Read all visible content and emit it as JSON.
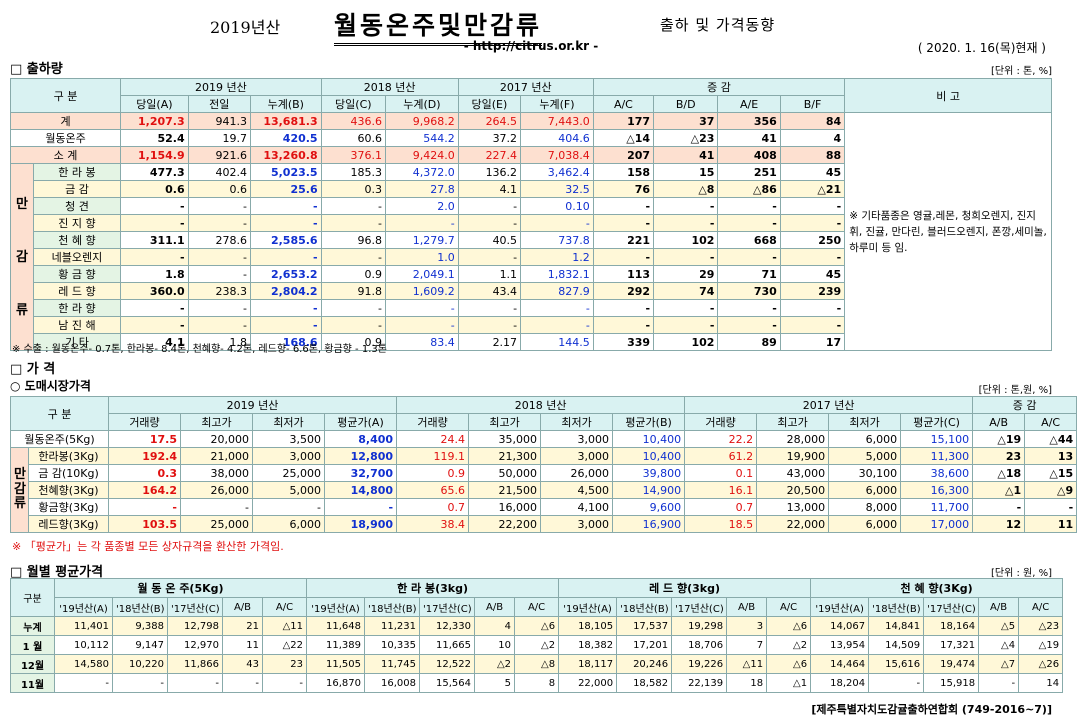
{
  "header": {
    "year_label": "2019년산",
    "main_title": "월동온주및만감류",
    "subtitle": "출하 및 가격동향",
    "url": "- http://citrus.or.kr -",
    "date": "( 2020. 1. 16(목)현재 )"
  },
  "shipment": {
    "section_title": "□ 출하량",
    "unit": "[단위 : 톤, %]",
    "h_gubun": "구    분",
    "h_2019": "2019 년산",
    "h_2018": "2018 년산",
    "h_2017": "2017 년산",
    "h_change": "증    감",
    "h_remark": "비 고",
    "sub_headers": [
      "당일(A)",
      "전일",
      "누계(B)",
      "당일(C)",
      "누계(D)",
      "당일(E)",
      "누계(F)",
      "A/C",
      "B/D",
      "A/E",
      "B/F"
    ],
    "side_label_1": "만",
    "side_label_2": "감",
    "side_label_3": "류",
    "rows": [
      {
        "name": "계",
        "v": [
          "1,207.3",
          "941.3",
          "13,681.3",
          "436.6",
          "9,968.2",
          "264.5",
          "7,443.0",
          "177",
          "37",
          "356",
          "84"
        ]
      },
      {
        "name": "월동온주",
        "v": [
          "52.4",
          "19.7",
          "420.5",
          "60.6",
          "544.2",
          "37.2",
          "404.6",
          "△14",
          "△23",
          "41",
          "4"
        ]
      },
      {
        "name": "소    계",
        "v": [
          "1,154.9",
          "921.6",
          "13,260.8",
          "376.1",
          "9,424.0",
          "227.4",
          "7,038.4",
          "207",
          "41",
          "408",
          "88"
        ]
      },
      {
        "name": "한 라 봉",
        "v": [
          "477.3",
          "402.4",
          "5,023.5",
          "185.3",
          "4,372.0",
          "136.2",
          "3,462.4",
          "158",
          "15",
          "251",
          "45"
        ]
      },
      {
        "name": "금    감",
        "v": [
          "0.6",
          "0.6",
          "25.6",
          "0.3",
          "27.8",
          "4.1",
          "32.5",
          "76",
          "△8",
          "△86",
          "△21"
        ]
      },
      {
        "name": "청    견",
        "v": [
          "-",
          "-",
          "-",
          "-",
          "2.0",
          "-",
          "0.10",
          "-",
          "-",
          "-",
          "-"
        ]
      },
      {
        "name": "진 지 향",
        "v": [
          "-",
          "-",
          "-",
          "-",
          "-",
          "-",
          "-",
          "-",
          "-",
          "-",
          "-"
        ]
      },
      {
        "name": "천 혜 향",
        "v": [
          "311.1",
          "278.6",
          "2,585.6",
          "96.8",
          "1,279.7",
          "40.5",
          "737.8",
          "221",
          "102",
          "668",
          "250"
        ]
      },
      {
        "name": "네블오렌지",
        "v": [
          "-",
          "-",
          "-",
          "-",
          "1.0",
          "-",
          "1.2",
          "-",
          "-",
          "-",
          "-"
        ]
      },
      {
        "name": "황 금 향",
        "v": [
          "1.8",
          "-",
          "2,653.2",
          "0.9",
          "2,049.1",
          "1.1",
          "1,832.1",
          "113",
          "29",
          "71",
          "45"
        ]
      },
      {
        "name": "레 드 향",
        "v": [
          "360.0",
          "238.3",
          "2,804.2",
          "91.8",
          "1,609.2",
          "43.4",
          "827.9",
          "292",
          "74",
          "730",
          "239"
        ]
      },
      {
        "name": "한 라 향",
        "v": [
          "-",
          "-",
          "-",
          "-",
          "-",
          "-",
          "-",
          "-",
          "-",
          "-",
          "-"
        ]
      },
      {
        "name": "남 진 해",
        "v": [
          "-",
          "-",
          "-",
          "-",
          "-",
          "-",
          "-",
          "-",
          "-",
          "-",
          "-"
        ]
      },
      {
        "name": "기    타",
        "v": [
          "4.1",
          "1.8",
          "168.6",
          "0.9",
          "83.4",
          "2.17",
          "144.5",
          "339",
          "102",
          "89",
          "17"
        ]
      }
    ],
    "remark_text": "※ 기타품종은 영귤,레몬, 청희오렌지, 진지휘, 진귤, 만다린, 블러드오렌지, 폰깡,세미놀, 하루미 등 임.",
    "footnote": "※ 수출 : 월동온주- 0.7톤, 한라봉- 8.4톤, 천혜향- 4.2톤, 레드향- 6.6톤, 황금향 - 1.3톤"
  },
  "price": {
    "section_title": "□ 가    격",
    "sub_title": "○ 도매시장가격",
    "unit": "[단위 : 톤,원, %]",
    "h_gubun": "구    분",
    "h_2019": "2019 년산",
    "h_2018": "2018 년산",
    "h_2017": "2017 년산",
    "h_change": "증    감",
    "sub_headers": [
      "거래량",
      "최고가",
      "최저가",
      "평균가(A)",
      "거래량",
      "최고가",
      "최저가",
      "평균가(B)",
      "거래량",
      "최고가",
      "최저가",
      "평균가(C)",
      "A/B",
      "A/C"
    ],
    "side_label_1": "만",
    "side_label_2": "감",
    "side_label_3": "류",
    "rows": [
      {
        "name": "월동온주(5Kg)",
        "v": [
          "17.5",
          "20,000",
          "3,500",
          "8,400",
          "24.4",
          "35,000",
          "3,000",
          "10,400",
          "22.2",
          "28,000",
          "6,000",
          "15,100",
          "△19",
          "△44"
        ]
      },
      {
        "name": "한라봉(3Kg)",
        "v": [
          "192.4",
          "21,000",
          "3,000",
          "12,800",
          "119.1",
          "21,300",
          "3,000",
          "10,400",
          "61.2",
          "19,900",
          "5,000",
          "11,300",
          "23",
          "13"
        ]
      },
      {
        "name": "금 감(10Kg)",
        "v": [
          "0.3",
          "38,000",
          "25,000",
          "32,700",
          "0.9",
          "50,000",
          "26,000",
          "39,800",
          "0.1",
          "43,000",
          "30,100",
          "38,600",
          "△18",
          "△15"
        ]
      },
      {
        "name": "천혜향(3Kg)",
        "v": [
          "164.2",
          "26,000",
          "5,000",
          "14,800",
          "65.6",
          "21,500",
          "4,500",
          "14,900",
          "16.1",
          "20,500",
          "6,000",
          "16,300",
          "△1",
          "△9"
        ]
      },
      {
        "name": "황금향(3Kg)",
        "v": [
          "-",
          "-",
          "-",
          "-",
          "0.7",
          "16,000",
          "4,100",
          "9,600",
          "0.7",
          "13,000",
          "8,000",
          "11,700",
          "-",
          "-"
        ]
      },
      {
        "name": "레드향(3Kg)",
        "v": [
          "103.5",
          "25,000",
          "6,000",
          "18,900",
          "38.4",
          "22,200",
          "3,000",
          "16,900",
          "18.5",
          "22,000",
          "6,000",
          "17,000",
          "12",
          "11"
        ]
      }
    ],
    "footnote": "※ 「평균가」는 각 품종별 모든 상자규격을 환산한 가격임."
  },
  "monthly": {
    "section_title": "□ 월별 평균가격",
    "unit": "[단위 : 원, %]",
    "h_gubun": "구분",
    "groups": [
      "월 동 온 주(5Kg)",
      "한 라 봉(3kg)",
      "레 드 향(3kg)",
      "천 혜 향(3Kg)"
    ],
    "sub_headers": [
      "'19년산(A)",
      "'18년산(B)",
      "'17년산(C)",
      "A/B",
      "A/C"
    ],
    "rows": [
      {
        "name": "누계",
        "v": [
          "11,401",
          "9,388",
          "12,798",
          "21",
          "△11",
          "11,648",
          "11,231",
          "12,330",
          "4",
          "△6",
          "18,105",
          "17,537",
          "19,298",
          "3",
          "△6",
          "14,067",
          "14,841",
          "18,164",
          "△5",
          "△23"
        ]
      },
      {
        "name": "1 월",
        "v": [
          "10,112",
          "9,147",
          "12,970",
          "11",
          "△22",
          "11,389",
          "10,335",
          "11,665",
          "10",
          "△2",
          "18,382",
          "17,201",
          "18,706",
          "7",
          "△2",
          "13,954",
          "14,509",
          "17,321",
          "△4",
          "△19"
        ]
      },
      {
        "name": "12월",
        "v": [
          "14,580",
          "10,220",
          "11,866",
          "43",
          "23",
          "11,505",
          "11,745",
          "12,522",
          "△2",
          "△8",
          "18,117",
          "20,246",
          "19,226",
          "△11",
          "△6",
          "14,464",
          "15,616",
          "19,474",
          "△7",
          "△26"
        ]
      },
      {
        "name": "11월",
        "v": [
          "-",
          "-",
          "-",
          "-",
          "-",
          "16,870",
          "16,008",
          "15,564",
          "5",
          "8",
          "22,000",
          "18,582",
          "22,139",
          "18",
          "△1",
          "18,204",
          "-",
          "15,918",
          "-",
          "14"
        ]
      }
    ]
  },
  "footer": "[제주특별자치도감귤출하연합회 (749-2016~7)]"
}
